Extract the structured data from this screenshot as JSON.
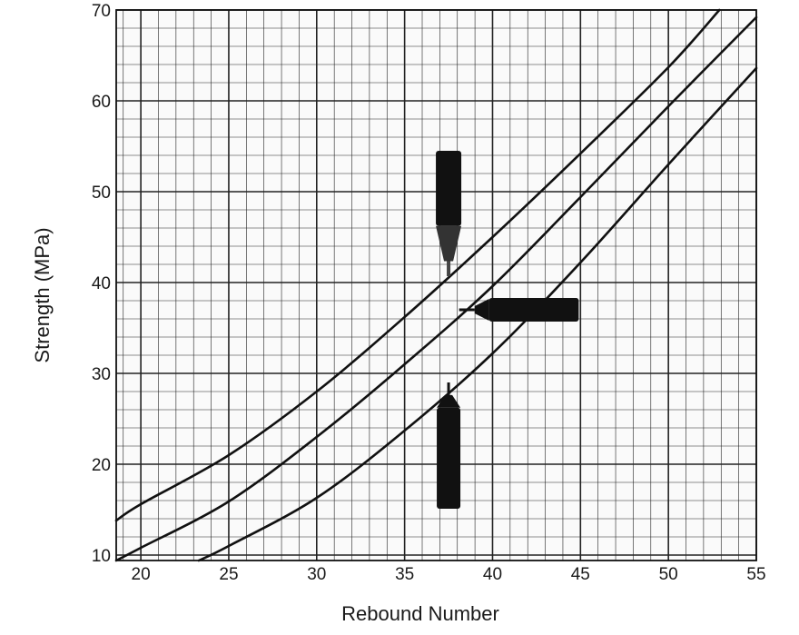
{
  "chart_data": {
    "type": "line",
    "title": "",
    "xlabel": "Rebound Number",
    "ylabel": "Strength (MPa)",
    "xlim": [
      18.6,
      55
    ],
    "ylim": [
      9.4,
      70
    ],
    "x_ticks": [
      20,
      25,
      30,
      35,
      40,
      45,
      50,
      55
    ],
    "y_ticks": [
      10,
      20,
      30,
      40,
      50,
      60,
      70
    ],
    "grid": true,
    "minor_grid_step_x": 1,
    "minor_grid_step_y": 2,
    "series": [
      {
        "x": [
          18.6,
          20,
          25,
          30,
          35,
          40,
          45,
          50,
          52.9
        ],
        "y": [
          13.8,
          15.6,
          21.0,
          28.0,
          36.2,
          45.0,
          54.2,
          63.7,
          70.0
        ],
        "hammer_orientation": "downward"
      },
      {
        "x": [
          18.6,
          20,
          25,
          30,
          35,
          40,
          45,
          50,
          55
        ],
        "y": [
          9.4,
          10.8,
          15.9,
          23.0,
          31.0,
          39.6,
          49.4,
          59.4,
          69.2
        ]
      },
      {
        "x": [
          23.3,
          25,
          30,
          35,
          40,
          45,
          50,
          55
        ],
        "y": [
          9.4,
          11.0,
          16.3,
          23.7,
          32.2,
          42.2,
          53.0,
          63.6
        ],
        "hammer_orientation": "upward"
      }
    ],
    "legend": "none",
    "annotation_icons": [
      {
        "name": "hammer-downward-icon",
        "x": 37.5,
        "y_top": 54.5,
        "y_tip": 40.7
      },
      {
        "name": "hammer-horizontal-icon",
        "y": 37.0,
        "x_tip": 38.1,
        "x_end": 44.9
      },
      {
        "name": "hammer-upward-icon",
        "x": 37.5,
        "y_tip": 29.0,
        "y_bottom": 15.1
      }
    ],
    "line_color": "#111111",
    "grid_color": "#222222"
  }
}
